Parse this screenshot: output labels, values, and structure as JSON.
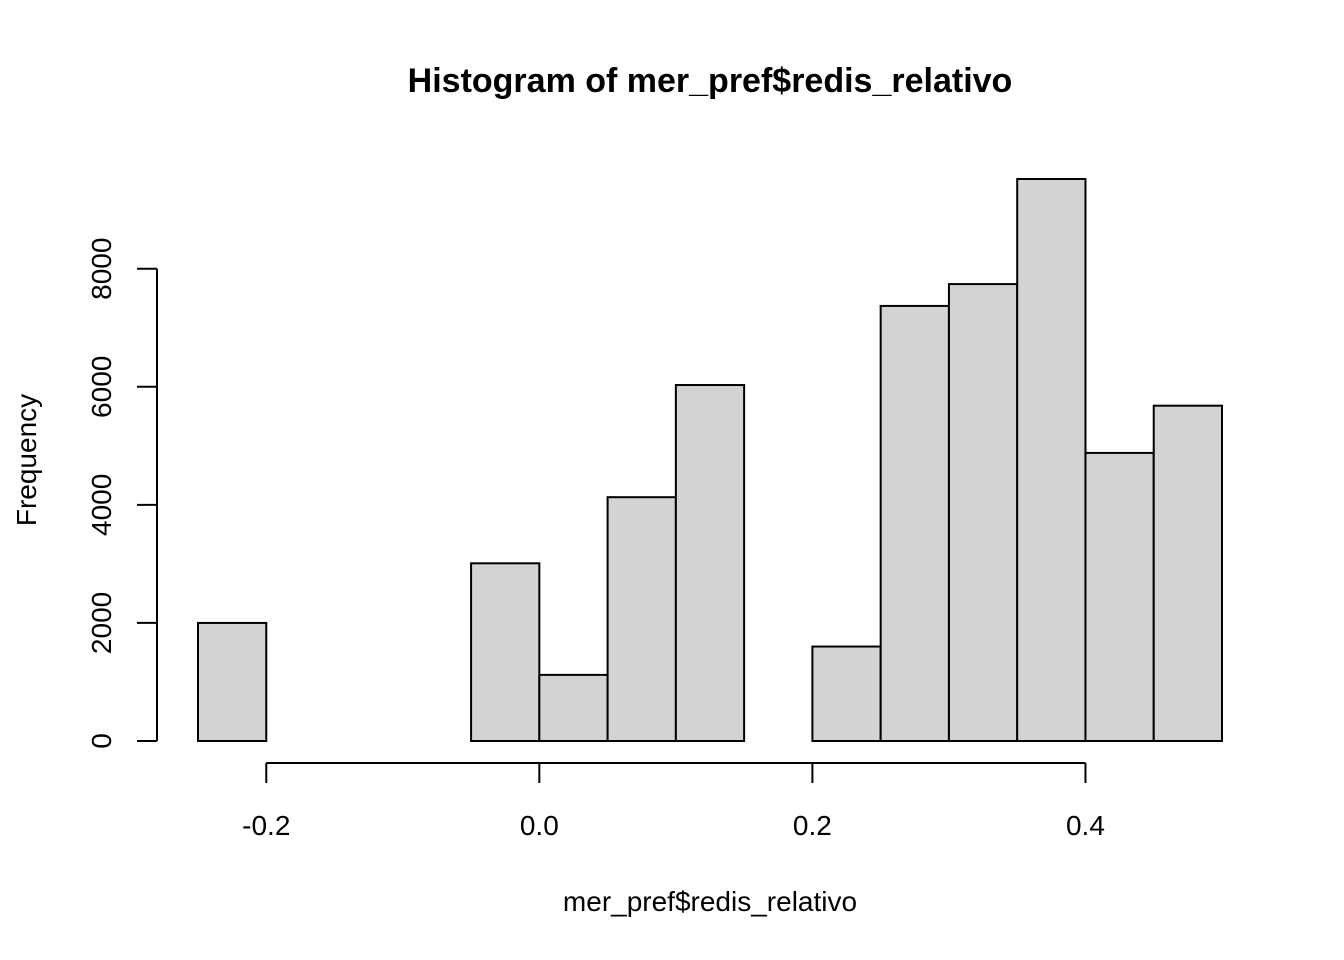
{
  "chart_data": {
    "type": "bar",
    "title": "Histogram of mer_pref$redis_relativo",
    "xlabel": "mer_pref$redis_relativo",
    "ylabel": "Frequency",
    "bins": [
      {
        "x0": -0.25,
        "x1": -0.2,
        "count": 2000
      },
      {
        "x0": -0.2,
        "x1": -0.15,
        "count": 0
      },
      {
        "x0": -0.15,
        "x1": -0.1,
        "count": 0
      },
      {
        "x0": -0.1,
        "x1": -0.05,
        "count": 0
      },
      {
        "x0": -0.05,
        "x1": 0.0,
        "count": 3010
      },
      {
        "x0": 0.0,
        "x1": 0.05,
        "count": 1120
      },
      {
        "x0": 0.05,
        "x1": 0.1,
        "count": 4130
      },
      {
        "x0": 0.1,
        "x1": 0.15,
        "count": 6030
      },
      {
        "x0": 0.15,
        "x1": 0.2,
        "count": 0
      },
      {
        "x0": 0.2,
        "x1": 0.25,
        "count": 1600
      },
      {
        "x0": 0.25,
        "x1": 0.3,
        "count": 7370
      },
      {
        "x0": 0.3,
        "x1": 0.35,
        "count": 7740
      },
      {
        "x0": 0.35,
        "x1": 0.4,
        "count": 9520
      },
      {
        "x0": 0.4,
        "x1": 0.45,
        "count": 4880
      },
      {
        "x0": 0.45,
        "x1": 0.5,
        "count": 5680
      }
    ],
    "xlim": [
      -0.25,
      0.5
    ],
    "ylim": [
      0,
      9520
    ],
    "xticks": [
      -0.2,
      0.0,
      0.2,
      0.4
    ],
    "xtick_labels": [
      "-0.2",
      "0.0",
      "0.2",
      "0.4"
    ],
    "yticks": [
      0,
      2000,
      4000,
      6000,
      8000
    ],
    "ytick_labels": [
      "0",
      "2000",
      "4000",
      "6000",
      "8000"
    ],
    "colors": {
      "bar_fill": "#d3d3d3",
      "bar_stroke": "#000000",
      "background": "#ffffff"
    },
    "grid": false
  }
}
